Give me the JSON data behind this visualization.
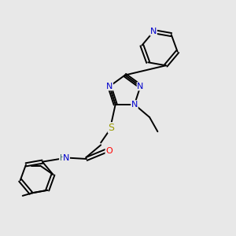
{
  "background_color": "#e8e8e8",
  "bond_color": "#000000",
  "atom_colors": {
    "N": "#0000cc",
    "O": "#ff0000",
    "S": "#999900",
    "H": "#336666"
  },
  "figsize": [
    3.0,
    3.0
  ],
  "dpi": 100
}
